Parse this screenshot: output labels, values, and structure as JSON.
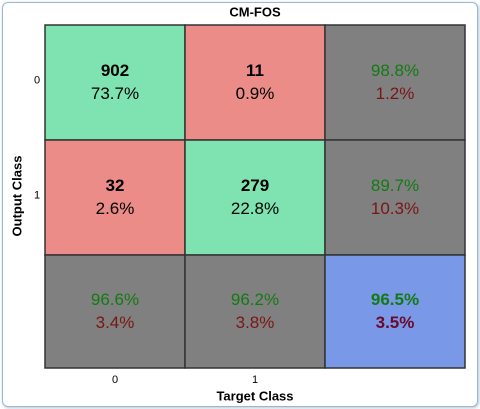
{
  "title": "CM-FOS",
  "x_label": "Target Class",
  "y_label": "Output Class",
  "x_categories": [
    "0",
    "1"
  ],
  "y_categories": [
    "0",
    "1"
  ],
  "rows": [
    [
      {
        "top": "902",
        "bottom": "73.7%"
      },
      {
        "top": "11",
        "bottom": "0.9%"
      },
      {
        "top": "98.8%",
        "bottom": "1.2%"
      }
    ],
    [
      {
        "top": "32",
        "bottom": "2.6%"
      },
      {
        "top": "279",
        "bottom": "22.8%"
      },
      {
        "top": "89.7%",
        "bottom": "10.3%"
      }
    ],
    [
      {
        "top": "96.6%",
        "bottom": "3.4%"
      },
      {
        "top": "96.2%",
        "bottom": "3.8%"
      },
      {
        "top": "96.5%",
        "bottom": "3.5%"
      }
    ]
  ]
}
